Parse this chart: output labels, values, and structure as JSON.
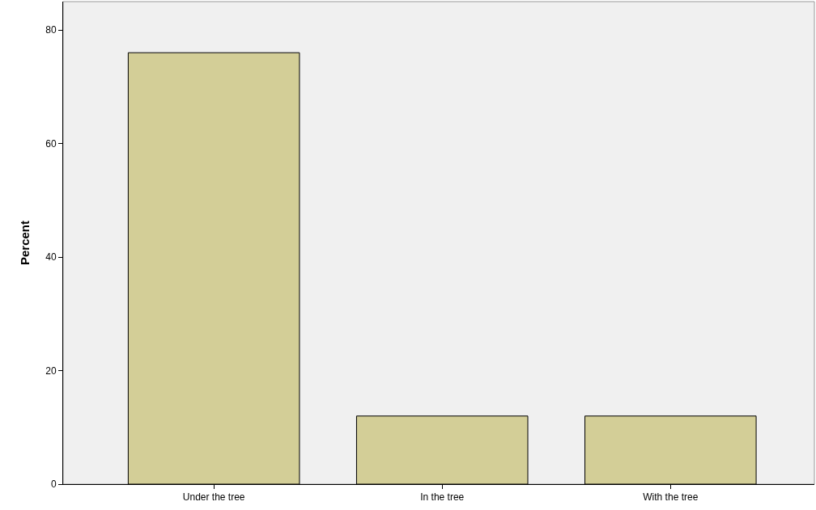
{
  "chart_data": {
    "type": "bar",
    "ylabel": "Percent",
    "categories": [
      "Under the tree",
      "In the tree",
      "With the tree"
    ],
    "values": [
      76,
      12,
      12
    ],
    "color": "#d3ce97",
    "ylim": [
      0,
      85
    ],
    "yticks": [
      0,
      20,
      40,
      60,
      80
    ],
    "grid": false,
    "legend": false
  }
}
